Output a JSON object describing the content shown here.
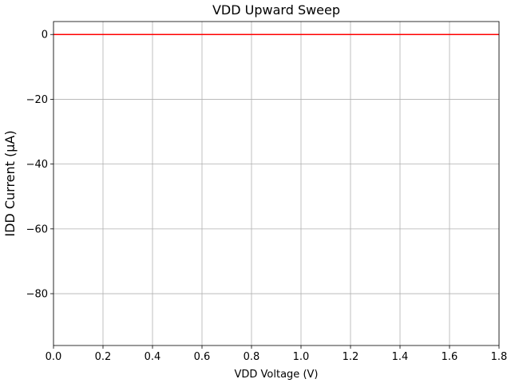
{
  "chart_data": {
    "type": "line",
    "title": "VDD Upward Sweep",
    "xlabel": "VDD Voltage (V)",
    "ylabel": "IDD Current (µA)",
    "xlim": [
      0.0,
      1.8
    ],
    "ylim": [
      -96,
      4
    ],
    "x_ticks": [
      "0.0",
      "0.2",
      "0.4",
      "0.6",
      "0.8",
      "1.0",
      "1.2",
      "1.4",
      "1.6",
      "1.8"
    ],
    "y_ticks": [
      "0",
      "−20",
      "−40",
      "−60",
      "−80"
    ],
    "grid": true,
    "series": [
      {
        "color": "#ff0000",
        "x": [
          0.0,
          0.2,
          0.4,
          0.6,
          0.8,
          1.0,
          1.2,
          1.4,
          1.6,
          1.8
        ],
        "y": [
          0,
          0,
          0,
          0,
          0,
          0,
          0,
          0,
          0,
          0
        ]
      }
    ]
  }
}
